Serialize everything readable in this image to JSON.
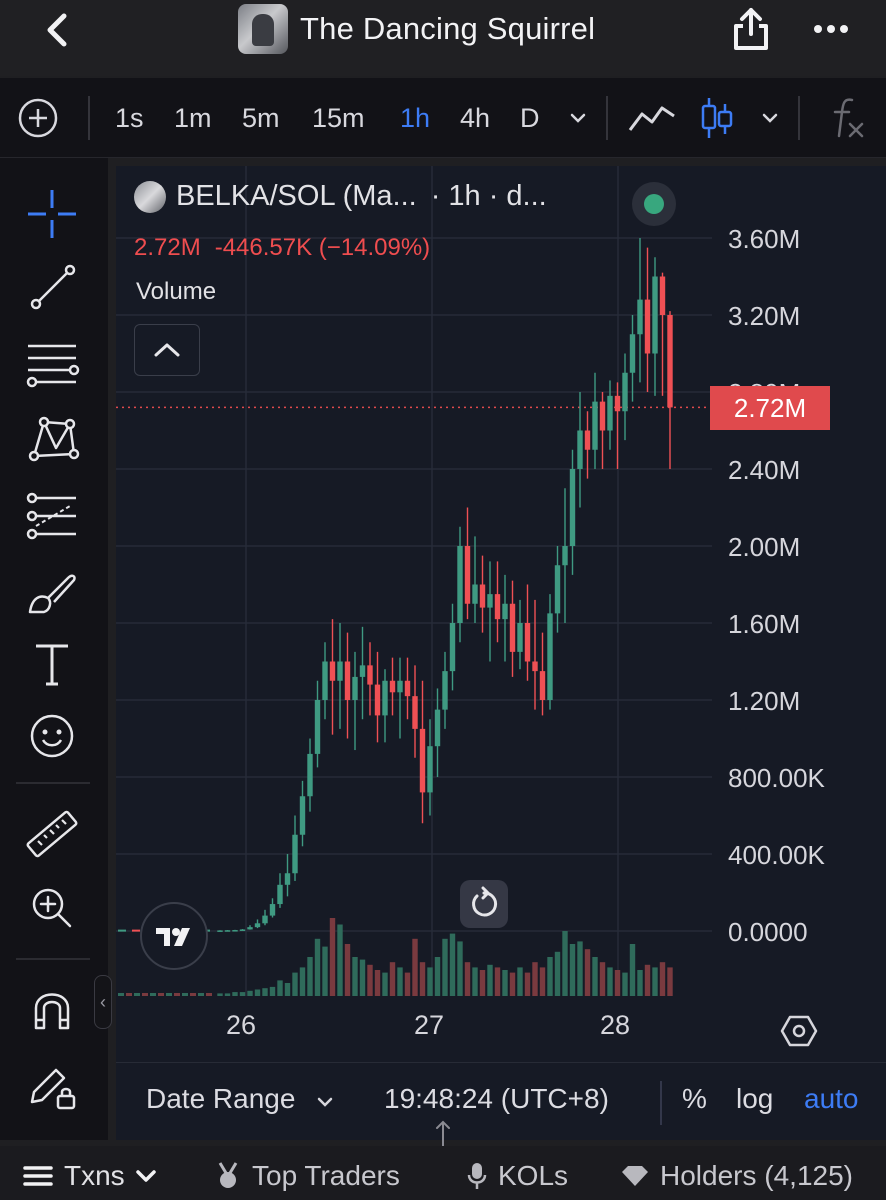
{
  "header": {
    "title": "The Dancing Squirrel"
  },
  "toolbar": {
    "timeframes": [
      "1s",
      "1m",
      "5m",
      "15m",
      "1h",
      "4h",
      "D"
    ],
    "active_timeframe": "1h"
  },
  "legend": {
    "pair": "BELKA/SOL (Ma...",
    "interval": "· 1h · d...",
    "volume_value": "2.72M",
    "volume_change": "-446.57K (−14.09%)",
    "volume_label": "Volume"
  },
  "price_axis": {
    "labels": [
      "3.60M",
      "3.20M",
      "2.80M",
      "2.40M",
      "2.00M",
      "1.60M",
      "1.20M",
      "800.00K",
      "400.00K",
      "0.0000"
    ],
    "current_tag": "2.72M"
  },
  "time_axis": {
    "labels": [
      "26",
      "27",
      "28"
    ]
  },
  "footer": {
    "date_range": "Date Range",
    "clock": "19:48:24 (UTC+8)",
    "percent": "%",
    "log": "log",
    "auto": "auto"
  },
  "tabs": {
    "txns": "Txns",
    "top_traders": "Top Traders",
    "kols": "KOLs",
    "holders": "Holders (4,125)"
  },
  "colors": {
    "up": "#3f9a82",
    "down": "#ef5054",
    "accent": "#3d7cf5",
    "price_tag": "#e04a4d"
  },
  "chart_data": {
    "type": "candlestick",
    "pair": "BELKA/SOL",
    "interval": "1h",
    "ylim": [
      0,
      3600000
    ],
    "x_ticks": [
      "26",
      "27",
      "28"
    ],
    "last_price": 2720000,
    "candles": [
      [
        0.002,
        0.004,
        0.001,
        0.003
      ],
      [
        0.003,
        0.005,
        0.002,
        0.004
      ],
      [
        0.004,
        0.006,
        0.003,
        0.005
      ],
      [
        0.005,
        0.01,
        0.004,
        0.008
      ],
      [
        0.008,
        0.03,
        0.007,
        0.02
      ],
      [
        0.02,
        0.06,
        0.015,
        0.04
      ],
      [
        0.04,
        0.11,
        0.03,
        0.08
      ],
      [
        0.08,
        0.17,
        0.07,
        0.14
      ],
      [
        0.14,
        0.3,
        0.12,
        0.24
      ],
      [
        0.24,
        0.4,
        0.18,
        0.3
      ],
      [
        0.3,
        0.6,
        0.26,
        0.5
      ],
      [
        0.5,
        0.78,
        0.44,
        0.7
      ],
      [
        0.7,
        1.0,
        0.62,
        0.92
      ],
      [
        0.92,
        1.3,
        0.85,
        1.2
      ],
      [
        1.2,
        1.5,
        1.1,
        1.4
      ],
      [
        1.4,
        1.62,
        1.02,
        1.3
      ],
      [
        1.3,
        1.6,
        1.05,
        1.4
      ],
      [
        1.4,
        1.55,
        1.0,
        1.2
      ],
      [
        1.2,
        1.45,
        0.94,
        1.32
      ],
      [
        1.32,
        1.58,
        1.1,
        1.38
      ],
      [
        1.38,
        1.5,
        1.12,
        1.28
      ],
      [
        1.28,
        1.45,
        0.98,
        1.12
      ],
      [
        1.12,
        1.36,
        0.98,
        1.3
      ],
      [
        1.3,
        1.42,
        1.12,
        1.24
      ],
      [
        1.24,
        1.42,
        1.0,
        1.3
      ],
      [
        1.3,
        1.42,
        1.1,
        1.22
      ],
      [
        1.22,
        1.38,
        0.9,
        1.05
      ],
      [
        1.05,
        1.3,
        0.56,
        0.72
      ],
      [
        0.72,
        1.1,
        0.6,
        0.96
      ],
      [
        0.96,
        1.26,
        0.8,
        1.15
      ],
      [
        1.15,
        1.45,
        1.05,
        1.35
      ],
      [
        1.35,
        1.7,
        1.25,
        1.6
      ],
      [
        1.6,
        2.1,
        1.5,
        2.0
      ],
      [
        2.0,
        2.2,
        1.62,
        1.7
      ],
      [
        1.7,
        2.05,
        1.6,
        1.8
      ],
      [
        1.8,
        1.95,
        1.55,
        1.68
      ],
      [
        1.68,
        1.92,
        1.4,
        1.75
      ],
      [
        1.75,
        1.92,
        1.5,
        1.62
      ],
      [
        1.62,
        1.85,
        1.4,
        1.7
      ],
      [
        1.7,
        1.82,
        1.32,
        1.45
      ],
      [
        1.45,
        1.72,
        1.36,
        1.6
      ],
      [
        1.6,
        1.8,
        1.3,
        1.4
      ],
      [
        1.4,
        1.72,
        1.15,
        1.35
      ],
      [
        1.35,
        1.55,
        1.12,
        1.2
      ],
      [
        1.2,
        1.75,
        1.15,
        1.65
      ],
      [
        1.65,
        2.0,
        1.55,
        1.9
      ],
      [
        1.9,
        2.3,
        1.6,
        2.0
      ],
      [
        2.0,
        2.5,
        1.85,
        2.4
      ],
      [
        2.4,
        2.8,
        2.2,
        2.6
      ],
      [
        2.6,
        2.7,
        2.35,
        2.5
      ],
      [
        2.5,
        2.9,
        2.4,
        2.75
      ],
      [
        2.75,
        2.8,
        2.4,
        2.6
      ],
      [
        2.6,
        2.86,
        2.5,
        2.78
      ],
      [
        2.78,
        2.85,
        2.4,
        2.7
      ],
      [
        2.7,
        3.0,
        2.55,
        2.9
      ],
      [
        2.9,
        3.2,
        2.75,
        3.1
      ],
      [
        3.1,
        3.6,
        2.85,
        3.28
      ],
      [
        3.28,
        3.55,
        2.8,
        3.0
      ],
      [
        3.0,
        3.5,
        2.78,
        3.4
      ],
      [
        3.4,
        3.42,
        2.78,
        3.2
      ],
      [
        3.2,
        3.22,
        2.4,
        2.72
      ]
    ],
    "volume": [
      0.02,
      0.02,
      0.03,
      0.03,
      0.04,
      0.05,
      0.06,
      0.07,
      0.12,
      0.1,
      0.18,
      0.22,
      0.3,
      0.44,
      0.38,
      0.6,
      0.55,
      0.4,
      0.3,
      0.28,
      0.24,
      0.2,
      0.18,
      0.26,
      0.22,
      0.18,
      0.44,
      0.26,
      0.22,
      0.3,
      0.44,
      0.48,
      0.42,
      0.26,
      0.22,
      0.2,
      0.24,
      0.22,
      0.2,
      0.18,
      0.22,
      0.18,
      0.26,
      0.22,
      0.3,
      0.34,
      0.5,
      0.4,
      0.42,
      0.36,
      0.3,
      0.26,
      0.22,
      0.2,
      0.18,
      0.4,
      0.2,
      0.24,
      0.22,
      0.26,
      0.22
    ]
  }
}
